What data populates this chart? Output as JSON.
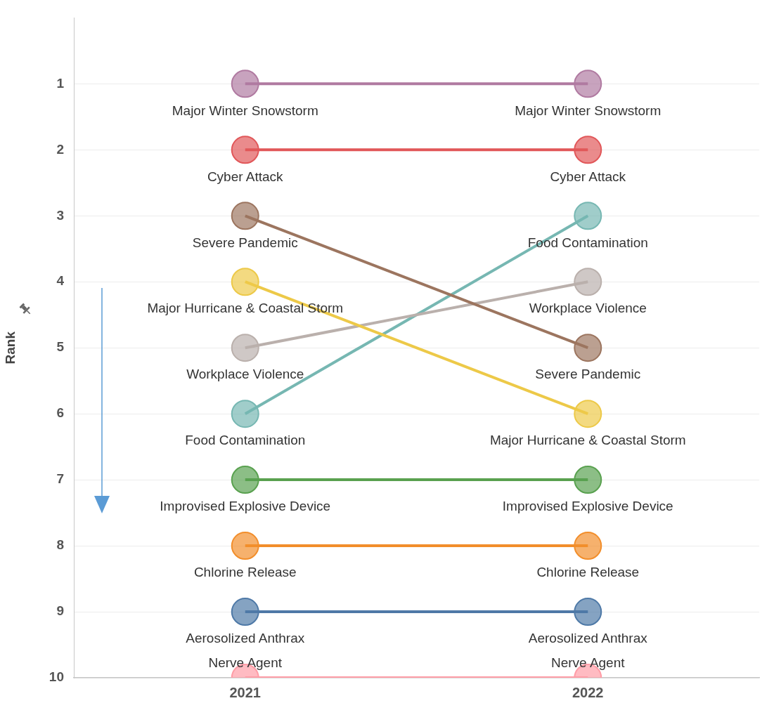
{
  "chart_data": {
    "type": "line",
    "ylabel": "Rank",
    "categories": [
      "2021",
      "2022"
    ],
    "ylim": [
      10,
      0
    ],
    "yticks": [
      1,
      2,
      3,
      4,
      5,
      6,
      7,
      8,
      9,
      10
    ],
    "grid": "y",
    "legend": false,
    "marker": "circle",
    "series": [
      {
        "name": "Major Winter Snowstorm",
        "color": "#b07aa1",
        "values": [
          1,
          1
        ]
      },
      {
        "name": "Cyber Attack",
        "color": "#e15759",
        "values": [
          2,
          2
        ]
      },
      {
        "name": "Severe Pandemic",
        "color": "#9c755f",
        "values": [
          3,
          5
        ]
      },
      {
        "name": "Major Hurricane & Coastal Storm",
        "color": "#edc948",
        "values": [
          4,
          6
        ]
      },
      {
        "name": "Workplace Violence",
        "color": "#bab0ac",
        "values": [
          5,
          4
        ]
      },
      {
        "name": "Food Contamination",
        "color": "#76b7b2",
        "values": [
          6,
          3
        ]
      },
      {
        "name": "Improvised Explosive Device",
        "color": "#59a14f",
        "values": [
          7,
          7
        ]
      },
      {
        "name": "Chlorine Release",
        "color": "#f28e2b",
        "values": [
          8,
          8
        ]
      },
      {
        "name": "Aerosolized Anthrax",
        "color": "#4e79a7",
        "values": [
          9,
          9
        ]
      },
      {
        "name": "Nerve Agent",
        "color": "#ff9da7",
        "values": [
          10,
          10
        ]
      }
    ]
  }
}
